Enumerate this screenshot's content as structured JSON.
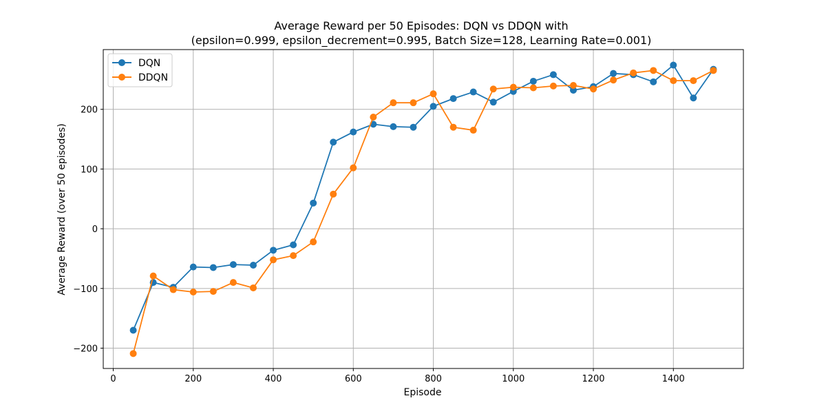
{
  "chart_data": {
    "type": "line",
    "title_line1": "Average Reward per 50 Episodes: DQN vs DDQN with",
    "title_line2": "(epsilon=0.999, epsilon_decrement=0.995, Batch Size=128, Learning Rate=0.001)",
    "xlabel": "Episode",
    "ylabel": "Average Reward (over 50 episodes)",
    "xlim": [
      -25,
      1575
    ],
    "ylim": [
      -234,
      300
    ],
    "x_ticks": [
      0,
      200,
      400,
      600,
      800,
      1000,
      1200,
      1400
    ],
    "y_ticks": [
      -200,
      -100,
      0,
      100,
      200
    ],
    "y_tick_labels": [
      "−200",
      "−100",
      "0",
      "100",
      "200"
    ],
    "grid": true,
    "legend_position": "top-left",
    "x": [
      50,
      100,
      150,
      200,
      250,
      300,
      350,
      400,
      450,
      500,
      550,
      600,
      650,
      700,
      750,
      800,
      850,
      900,
      950,
      1000,
      1050,
      1100,
      1150,
      1200,
      1250,
      1300,
      1350,
      1400,
      1450,
      1500
    ],
    "series": [
      {
        "name": "DQN",
        "color": "#1f77b4",
        "values": [
          -170,
          -90,
          -98,
          -64,
          -65,
          -60,
          -61,
          -36,
          -27,
          43,
          145,
          162,
          175,
          171,
          170,
          205,
          218,
          229,
          212,
          230,
          247,
          258,
          232,
          238,
          260,
          258,
          246,
          274,
          219,
          267
        ]
      },
      {
        "name": "DDQN",
        "color": "#ff7f0e",
        "values": [
          -209,
          -79,
          -102,
          -106,
          -105,
          -90,
          -99,
          -52,
          -45,
          -22,
          58,
          102,
          187,
          211,
          211,
          226,
          170,
          165,
          234,
          237,
          236,
          239,
          240,
          234,
          249,
          261,
          265,
          248,
          248,
          265
        ]
      }
    ]
  }
}
